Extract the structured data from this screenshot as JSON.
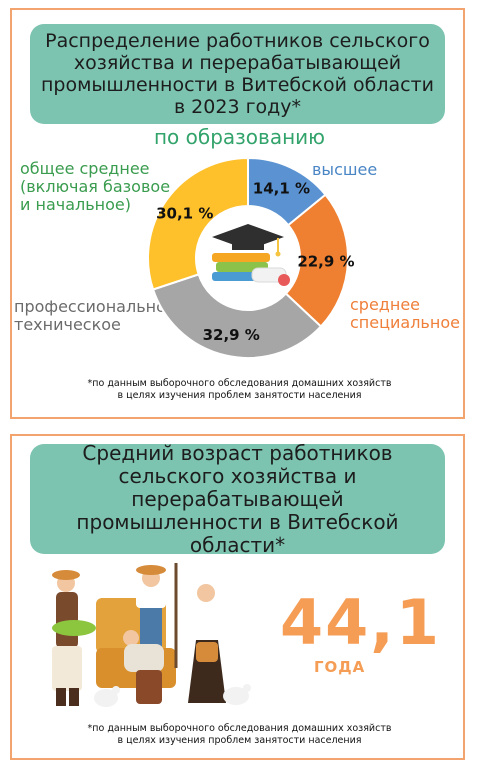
{
  "section1": {
    "title": "Распределение работников сельского хозяйства и перерабатывающей промышленности в Витебской области в 2023 году*",
    "subtitle": "по образованию",
    "footnote_line1": "*по данным выборочного обследования домашних хозяйств",
    "footnote_line2": "в целях изучения проблем занятости населения"
  },
  "chart_data": {
    "type": "pie",
    "donut": true,
    "slices": [
      {
        "label": "высшее",
        "value": 14.1,
        "value_text": "14,1 %",
        "color": "#5b93d2"
      },
      {
        "label": "среднее специальное",
        "value": 22.9,
        "value_text": "22,9 %",
        "color": "#ef7f31"
      },
      {
        "label": "профессионально-техническое",
        "value": 32.9,
        "value_text": "32,9 %",
        "color": "#a6a6a6"
      },
      {
        "label": "общее среднее (включая базовое и начальное)",
        "value": 30.1,
        "value_text": "30,1 %",
        "color": "#fec02b"
      }
    ],
    "labels": {
      "higher": "высшее",
      "specialized_line1": "среднее",
      "specialized_line2": "специальное",
      "vocational_line1": "профессионально-",
      "vocational_line2": "техническое",
      "general_line1": "общее среднее",
      "general_line2": "(включая базовое",
      "general_line3": "и начальное)"
    }
  },
  "section2": {
    "title": "Средний возраст работников сельского хозяйства и перерабатывающей промышленности в Витебской области*",
    "value": "44,1",
    "unit": "ГОДА",
    "footnote_line1": "*по данным выборочного обследования домашних хозяйств",
    "footnote_line2": "в целях изучения проблем занятости населения"
  },
  "icons": [
    "graduation-cap-icon",
    "books-icon",
    "diploma-icon",
    "farmers-illustration"
  ],
  "colors": {
    "header": "#7cc4b0",
    "border": "#f3a46e",
    "accent_green": "#33a36c",
    "accent_orange": "#f59d55"
  }
}
